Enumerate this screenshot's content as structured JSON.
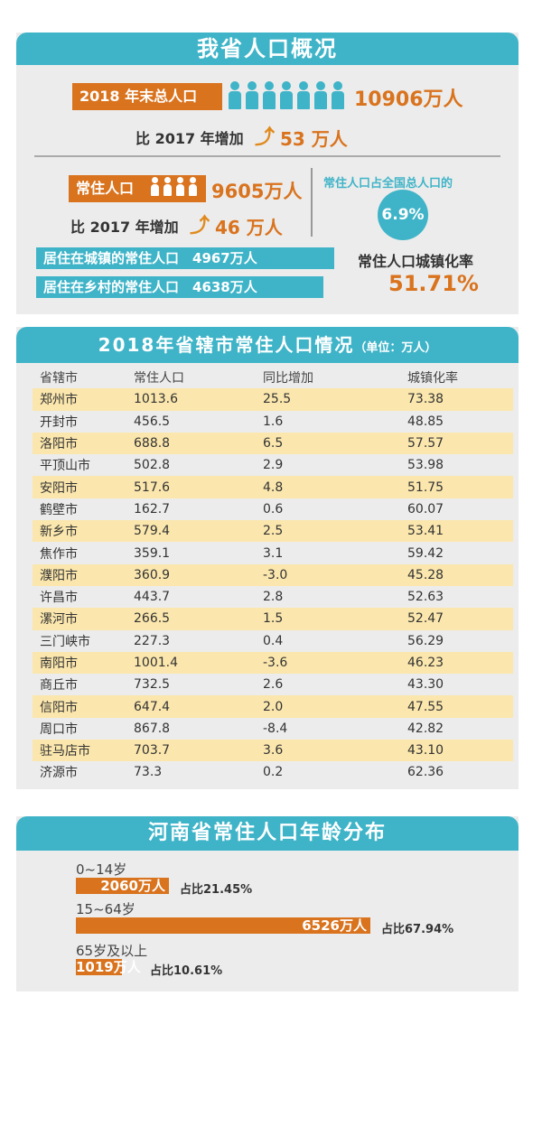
{
  "overview": {
    "title": "我省人口概况",
    "total_label": "2018 年末总人口",
    "total_value": "10906万人",
    "total_increase_label": "比 2017 年增加",
    "total_increase_value": "53 万人",
    "resident_label": "常住人口",
    "resident_value": "9605万人",
    "resident_increase_label": "比 2017 年增加",
    "resident_increase_value": "46 万人",
    "national_share_label": "常住人口占全国总人口的",
    "national_share_value": "6.9%",
    "urban_resident": "居住在城镇的常住人口　4967万人",
    "rural_resident": "居住在乡村的常住人口　4638万人",
    "urbanization_label": "常住人口城镇化率",
    "urbanization_value": "51.71%",
    "colors": {
      "teal": "#3fb4c8",
      "orange": "#d9731e"
    }
  },
  "city_table": {
    "title": "2018年省辖市常住人口情况",
    "unit": "（单位：万人）",
    "headers": [
      "省辖市",
      "常住人口",
      "同比增加",
      "城镇化率"
    ],
    "rows": [
      [
        "郑州市",
        "1013.6",
        "25.5",
        "73.38"
      ],
      [
        "开封市",
        "456.5",
        "1.6",
        "48.85"
      ],
      [
        "洛阳市",
        "688.8",
        "6.5",
        "57.57"
      ],
      [
        "平顶山市",
        "502.8",
        "2.9",
        "53.98"
      ],
      [
        "安阳市",
        "517.6",
        "4.8",
        "51.75"
      ],
      [
        "鹤壁市",
        "162.7",
        "0.6",
        "60.07"
      ],
      [
        "新乡市",
        "579.4",
        "2.5",
        "53.41"
      ],
      [
        "焦作市",
        "359.1",
        "3.1",
        "59.42"
      ],
      [
        "濮阳市",
        "360.9",
        "-3.0",
        "45.28"
      ],
      [
        "许昌市",
        "443.7",
        "2.8",
        "52.63"
      ],
      [
        "漯河市",
        "266.5",
        "1.5",
        "52.47"
      ],
      [
        "三门峡市",
        "227.3",
        "0.4",
        "56.29"
      ],
      [
        "南阳市",
        "1001.4",
        "-3.6",
        "46.23"
      ],
      [
        "商丘市",
        "732.5",
        "2.6",
        "43.30"
      ],
      [
        "信阳市",
        "647.4",
        "2.0",
        "47.55"
      ],
      [
        "周口市",
        "867.8",
        "-8.4",
        "42.82"
      ],
      [
        "驻马店市",
        "703.7",
        "3.6",
        "43.10"
      ],
      [
        "济源市",
        "73.3",
        "0.2",
        "62.36"
      ]
    ]
  },
  "age": {
    "title": "河南省常住人口年龄分布",
    "groups": [
      {
        "label": "0~14岁",
        "value": "2060万人",
        "share": "占比21.45%",
        "fraction": 0.2145
      },
      {
        "label": "15~64岁",
        "value": "6526万人",
        "share": "占比67.94%",
        "fraction": 0.6794
      },
      {
        "label": "65岁及以上",
        "value": "1019万人",
        "share": "占比10.61%",
        "fraction": 0.1061
      }
    ]
  }
}
